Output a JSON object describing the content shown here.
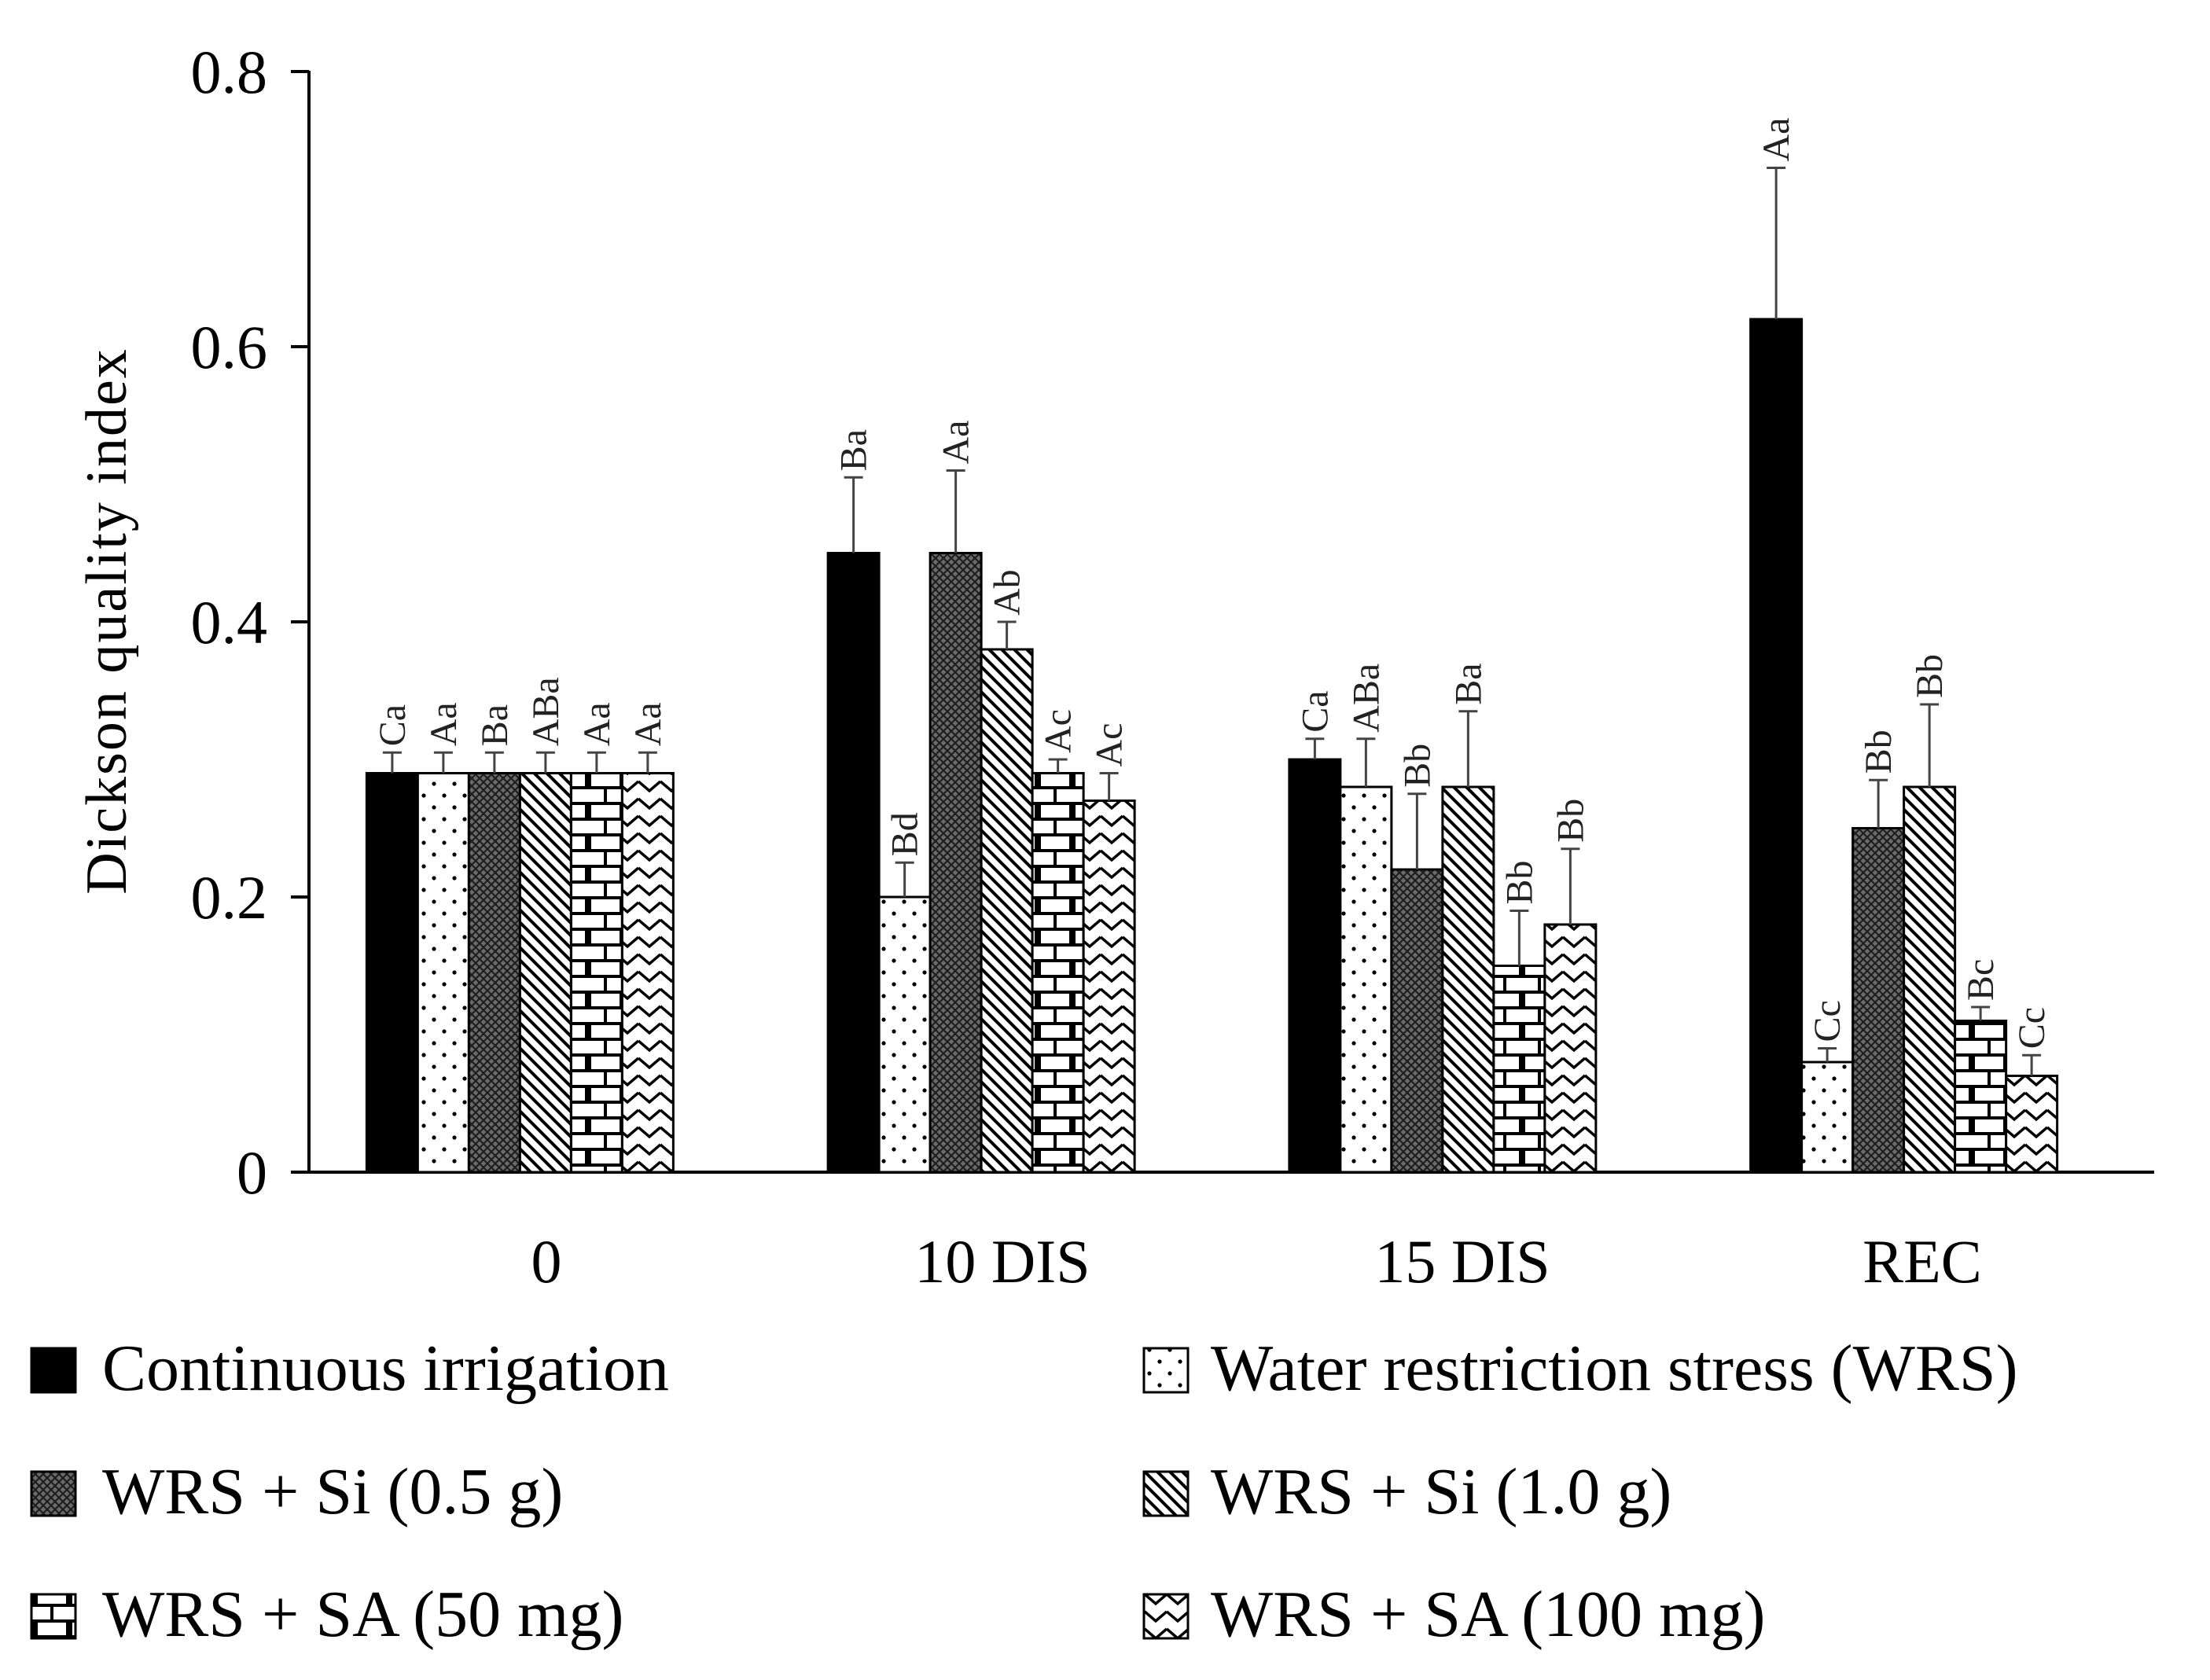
{
  "chart_data": {
    "type": "bar",
    "title": "",
    "xlabel": "",
    "ylabel": "Dickson quality index",
    "ylim": [
      0,
      0.8
    ],
    "yticks": [
      "0",
      "0.2",
      "0.4",
      "0.6",
      "0.8"
    ],
    "ytick_values": [
      0,
      0.2,
      0.4,
      0.6,
      0.8
    ],
    "categories": [
      "0",
      "10 DIS",
      "15 DIS",
      "REC"
    ],
    "grid": false,
    "legend_position": "bottom",
    "series": [
      {
        "name": "Continuous irrigation",
        "pattern": "solid",
        "values": [
          0.29,
          0.45,
          0.3,
          0.62
        ],
        "errors": [
          0.015,
          0.055,
          0.015,
          0.11
        ],
        "labels": [
          "Ca",
          "Ba",
          "Ca",
          "Aa"
        ]
      },
      {
        "name": "Water restriction stress (WRS)",
        "pattern": "dots",
        "values": [
          0.29,
          0.2,
          0.28,
          0.08
        ],
        "errors": [
          0.015,
          0.025,
          0.035,
          0.01
        ],
        "labels": [
          "Aa",
          "Bd",
          "ABa",
          "Cc"
        ]
      },
      {
        "name": "WRS + Si (0.5 g)",
        "pattern": "crosshatch",
        "values": [
          0.29,
          0.45,
          0.22,
          0.25
        ],
        "errors": [
          0.015,
          0.06,
          0.055,
          0.035
        ],
        "labels": [
          "Ba",
          "Aa",
          "Bb",
          "Bb"
        ]
      },
      {
        "name": "WRS + Si (1.0 g)",
        "pattern": "diag-down",
        "values": [
          0.29,
          0.38,
          0.28,
          0.28
        ],
        "errors": [
          0.015,
          0.02,
          0.055,
          0.06
        ],
        "labels": [
          "ABa",
          "Ab",
          "Ba",
          "Bb"
        ]
      },
      {
        "name": "WRS + SA (50 mg)",
        "pattern": "brick",
        "values": [
          0.29,
          0.29,
          0.15,
          0.11
        ],
        "errors": [
          0.015,
          0.01,
          0.04,
          0.01
        ],
        "labels": [
          "Aa",
          "Ac",
          "Bb",
          "Bc"
        ]
      },
      {
        "name": "WRS + SA (100 mg)",
        "pattern": "zigzag",
        "values": [
          0.29,
          0.27,
          0.18,
          0.07
        ],
        "errors": [
          0.015,
          0.02,
          0.055,
          0.015
        ],
        "labels": [
          "Aa",
          "Ac",
          "Bb",
          "Cc"
        ]
      }
    ]
  }
}
